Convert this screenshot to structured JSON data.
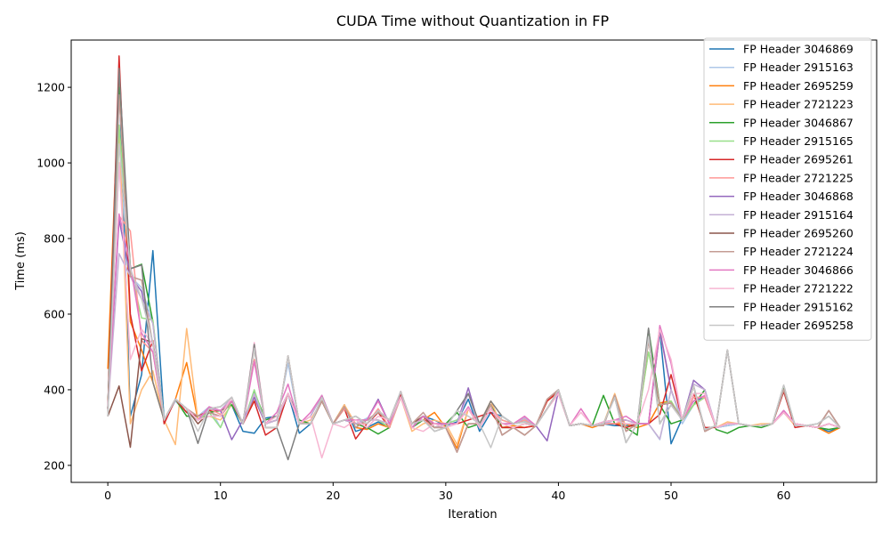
{
  "chart_data": {
    "type": "line",
    "title": "CUDA Time without Quantization in FP",
    "xlabel": "Iteration",
    "ylabel": "Time (ms)",
    "xlim": [
      -3.25,
      68.25
    ],
    "ylim": [
      155,
      1325
    ],
    "x_ticks": [
      0,
      10,
      20,
      30,
      40,
      50,
      60
    ],
    "y_ticks": [
      200,
      400,
      600,
      800,
      1000,
      1200
    ],
    "grid": false,
    "legend_position": "top-right",
    "x": [
      0,
      1,
      2,
      3,
      4,
      5,
      6,
      7,
      8,
      9,
      10,
      11,
      12,
      13,
      14,
      15,
      16,
      17,
      18,
      19,
      20,
      21,
      22,
      23,
      24,
      25,
      26,
      27,
      28,
      29,
      30,
      31,
      32,
      33,
      34,
      35,
      36,
      37,
      38,
      39,
      40,
      41,
      42,
      43,
      44,
      45,
      46,
      47,
      48,
      49,
      50,
      51,
      52,
      53,
      54,
      55,
      56,
      57,
      58,
      59,
      60,
      61,
      62,
      63,
      64,
      65
    ],
    "series": [
      {
        "name": "FP Header 3046869",
        "color": "#1f77b4",
        "values": [
          350,
          1230,
          330,
          440,
          768,
          320,
          375,
          340,
          320,
          350,
          345,
          360,
          290,
          285,
          325,
          330,
          390,
          285,
          310,
          370,
          310,
          360,
          290,
          300,
          315,
          300,
          395,
          300,
          330,
          320,
          305,
          315,
          375,
          290,
          340,
          330,
          310,
          315,
          305,
          350,
          395,
          305,
          310,
          305,
          310,
          305,
          305,
          310,
          310,
          555,
          257,
          325,
          370,
          380,
          300,
          305,
          310,
          305,
          305,
          310,
          340,
          310,
          305,
          300,
          290,
          300
        ]
      },
      {
        "name": "FP Header 2915163",
        "color": "#aec7e8",
        "values": [
          350,
          1000,
          700,
          670,
          575,
          320,
          370,
          340,
          330,
          355,
          300,
          370,
          310,
          380,
          310,
          320,
          470,
          310,
          310,
          370,
          310,
          350,
          310,
          325,
          320,
          300,
          380,
          310,
          320,
          300,
          310,
          320,
          350,
          300,
          350,
          320,
          310,
          320,
          305,
          350,
          390,
          305,
          310,
          305,
          315,
          310,
          310,
          310,
          310,
          268,
          400,
          310,
          360,
          380,
          300,
          305,
          310,
          305,
          305,
          310,
          340,
          310,
          305,
          300,
          310,
          300
        ]
      },
      {
        "name": "FP Header 2695259",
        "color": "#ff7f0e",
        "values": [
          455,
          1225,
          580,
          505,
          420,
          320,
          375,
          472,
          320,
          340,
          345,
          360,
          310,
          380,
          310,
          320,
          390,
          310,
          310,
          370,
          310,
          360,
          300,
          295,
          310,
          300,
          395,
          310,
          320,
          340,
          300,
          245,
          350,
          310,
          370,
          300,
          305,
          300,
          305,
          370,
          395,
          305,
          310,
          300,
          310,
          310,
          310,
          300,
          310,
          365,
          370,
          320,
          360,
          380,
          300,
          310,
          310,
          305,
          305,
          310,
          340,
          310,
          305,
          300,
          285,
          300
        ]
      },
      {
        "name": "FP Header 2721223",
        "color": "#ffbb78",
        "values": [
          350,
          1100,
          310,
          400,
          450,
          320,
          255,
          562,
          320,
          330,
          320,
          360,
          310,
          390,
          310,
          320,
          390,
          310,
          320,
          370,
          310,
          360,
          310,
          320,
          320,
          300,
          380,
          290,
          310,
          320,
          310,
          255,
          350,
          310,
          370,
          300,
          300,
          310,
          305,
          350,
          390,
          305,
          310,
          305,
          310,
          390,
          300,
          310,
          500,
          360,
          365,
          320,
          360,
          380,
          300,
          315,
          310,
          305,
          310,
          310,
          340,
          305,
          305,
          300,
          310,
          300
        ]
      },
      {
        "name": "FP Header 3046867",
        "color": "#2ca02c",
        "values": [
          350,
          1200,
          720,
          732,
          580,
          320,
          375,
          330,
          330,
          340,
          345,
          360,
          310,
          395,
          320,
          330,
          390,
          320,
          310,
          370,
          310,
          320,
          310,
          300,
          283,
          300,
          390,
          300,
          320,
          300,
          310,
          340,
          300,
          310,
          360,
          300,
          300,
          310,
          305,
          350,
          395,
          305,
          310,
          305,
          385,
          310,
          300,
          280,
          560,
          360,
          310,
          320,
          360,
          400,
          295,
          285,
          300,
          305,
          300,
          310,
          405,
          305,
          305,
          300,
          295,
          300
        ]
      },
      {
        "name": "FP Header 2915165",
        "color": "#98df8a",
        "values": [
          350,
          1100,
          720,
          590,
          585,
          320,
          375,
          340,
          320,
          340,
          300,
          370,
          310,
          400,
          310,
          320,
          390,
          310,
          310,
          370,
          310,
          350,
          310,
          320,
          320,
          300,
          380,
          310,
          320,
          300,
          310,
          320,
          350,
          300,
          350,
          320,
          310,
          320,
          305,
          350,
          390,
          305,
          310,
          305,
          310,
          310,
          300,
          310,
          500,
          360,
          370,
          320,
          360,
          380,
          300,
          310,
          310,
          305,
          305,
          310,
          340,
          310,
          305,
          300,
          310,
          300
        ]
      },
      {
        "name": "FP Header 2695261",
        "color": "#d62728",
        "values": [
          350,
          1283,
          600,
          450,
          530,
          310,
          375,
          340,
          330,
          345,
          345,
          370,
          310,
          370,
          280,
          300,
          390,
          310,
          310,
          370,
          310,
          350,
          270,
          310,
          340,
          300,
          390,
          310,
          320,
          310,
          310,
          310,
          320,
          330,
          340,
          300,
          300,
          300,
          305,
          370,
          395,
          305,
          310,
          305,
          310,
          310,
          300,
          310,
          310,
          335,
          440,
          320,
          390,
          300,
          300,
          310,
          310,
          305,
          305,
          310,
          395,
          300,
          305,
          300,
          310,
          300
        ]
      },
      {
        "name": "FP Header 2721225",
        "color": "#ff9896",
        "values": [
          350,
          860,
          820,
          530,
          500,
          320,
          375,
          350,
          320,
          350,
          335,
          370,
          310,
          480,
          310,
          320,
          390,
          310,
          310,
          370,
          310,
          350,
          310,
          310,
          350,
          300,
          380,
          310,
          320,
          300,
          310,
          310,
          350,
          300,
          350,
          320,
          310,
          320,
          305,
          350,
          390,
          305,
          310,
          305,
          310,
          310,
          320,
          310,
          310,
          555,
          400,
          320,
          380,
          380,
          300,
          310,
          310,
          305,
          305,
          310,
          340,
          310,
          305,
          300,
          310,
          300
        ]
      },
      {
        "name": "FP Header 3046868",
        "color": "#9467bd",
        "values": [
          350,
          850,
          700,
          660,
          520,
          320,
          375,
          350,
          320,
          350,
          345,
          268,
          320,
          380,
          310,
          320,
          390,
          310,
          330,
          385,
          310,
          320,
          310,
          320,
          375,
          310,
          395,
          300,
          330,
          310,
          310,
          310,
          405,
          300,
          350,
          310,
          310,
          325,
          305,
          265,
          395,
          305,
          310,
          305,
          315,
          320,
          320,
          310,
          310,
          560,
          400,
          320,
          425,
          400,
          300,
          310,
          310,
          305,
          305,
          310,
          345,
          310,
          305,
          300,
          310,
          300
        ]
      },
      {
        "name": "FP Header 2915164",
        "color": "#c5b0d5",
        "values": [
          350,
          760,
          700,
          640,
          575,
          320,
          375,
          350,
          320,
          350,
          345,
          380,
          310,
          390,
          310,
          320,
          390,
          310,
          330,
          385,
          310,
          320,
          310,
          320,
          320,
          310,
          380,
          300,
          330,
          300,
          310,
          310,
          390,
          300,
          350,
          310,
          310,
          325,
          305,
          350,
          390,
          305,
          310,
          305,
          310,
          320,
          320,
          310,
          310,
          270,
          400,
          320,
          415,
          400,
          300,
          310,
          310,
          305,
          305,
          310,
          340,
          310,
          305,
          300,
          310,
          300
        ]
      },
      {
        "name": "FP Header 2695260",
        "color": "#8c564b",
        "values": [
          330,
          410,
          248,
          535,
          525,
          320,
          375,
          350,
          310,
          340,
          330,
          370,
          310,
          510,
          300,
          300,
          490,
          310,
          310,
          370,
          310,
          355,
          300,
          320,
          340,
          320,
          380,
          310,
          330,
          300,
          300,
          235,
          310,
          310,
          360,
          280,
          300,
          280,
          305,
          375,
          400,
          305,
          310,
          305,
          305,
          385,
          290,
          310,
          530,
          360,
          365,
          320,
          410,
          290,
          305,
          505,
          310,
          305,
          305,
          310,
          400,
          305,
          305,
          300,
          345,
          300
        ]
      },
      {
        "name": "FP Header 2721224",
        "color": "#c49c94",
        "values": [
          330,
          1180,
          700,
          690,
          520,
          320,
          375,
          350,
          330,
          340,
          330,
          370,
          310,
          510,
          300,
          300,
          490,
          310,
          310,
          370,
          310,
          355,
          300,
          320,
          340,
          320,
          380,
          310,
          340,
          300,
          300,
          235,
          310,
          310,
          360,
          280,
          300,
          280,
          305,
          375,
          400,
          305,
          310,
          305,
          305,
          385,
          290,
          310,
          530,
          360,
          365,
          320,
          410,
          290,
          305,
          505,
          310,
          305,
          305,
          310,
          400,
          305,
          305,
          300,
          345,
          300
        ]
      },
      {
        "name": "FP Header 3046866",
        "color": "#e377c2",
        "values": [
          350,
          865,
          730,
          550,
          500,
          320,
          375,
          350,
          320,
          355,
          345,
          370,
          310,
          475,
          310,
          340,
          415,
          310,
          340,
          385,
          310,
          320,
          320,
          320,
          370,
          310,
          395,
          300,
          330,
          310,
          310,
          310,
          355,
          300,
          350,
          310,
          310,
          330,
          305,
          350,
          395,
          305,
          350,
          305,
          315,
          320,
          330,
          310,
          310,
          570,
          470,
          320,
          370,
          385,
          300,
          310,
          310,
          305,
          305,
          310,
          345,
          310,
          305,
          300,
          310,
          300
        ]
      },
      {
        "name": "FP Header 2721222",
        "color": "#f7b6d2",
        "values": [
          350,
          1000,
          480,
          560,
          520,
          320,
          375,
          350,
          320,
          330,
          330,
          380,
          310,
          525,
          310,
          330,
          390,
          310,
          330,
          220,
          310,
          300,
          320,
          300,
          330,
          320,
          380,
          300,
          290,
          310,
          300,
          310,
          350,
          300,
          350,
          310,
          300,
          310,
          305,
          350,
          390,
          305,
          340,
          305,
          315,
          320,
          310,
          310,
          400,
          560,
          480,
          320,
          390,
          390,
          300,
          310,
          310,
          305,
          305,
          310,
          340,
          310,
          305,
          300,
          310,
          300
        ]
      },
      {
        "name": "FP Header 2915162",
        "color": "#7f7f7f",
        "values": [
          330,
          1250,
          720,
          730,
          420,
          320,
          375,
          350,
          258,
          350,
          355,
          380,
          310,
          520,
          300,
          300,
          215,
          310,
          310,
          380,
          310,
          320,
          330,
          310,
          345,
          320,
          395,
          310,
          320,
          290,
          300,
          345,
          390,
          310,
          370,
          330,
          310,
          315,
          305,
          350,
          400,
          305,
          310,
          305,
          310,
          380,
          260,
          310,
          563,
          310,
          360,
          320,
          410,
          295,
          305,
          505,
          310,
          305,
          305,
          310,
          412,
          305,
          305,
          310,
          330,
          300
        ]
      },
      {
        "name": "FP Header 2695258",
        "color": "#c7c7c7",
        "values": [
          330,
          1050,
          720,
          640,
          525,
          320,
          375,
          350,
          290,
          350,
          355,
          380,
          310,
          510,
          300,
          300,
          490,
          310,
          310,
          380,
          310,
          320,
          330,
          310,
          345,
          320,
          395,
          310,
          320,
          290,
          300,
          345,
          330,
          310,
          247,
          330,
          310,
          315,
          305,
          350,
          400,
          305,
          310,
          305,
          310,
          380,
          260,
          310,
          540,
          310,
          360,
          320,
          410,
          295,
          305,
          505,
          310,
          305,
          305,
          310,
          412,
          305,
          305,
          310,
          330,
          300
        ]
      }
    ]
  }
}
